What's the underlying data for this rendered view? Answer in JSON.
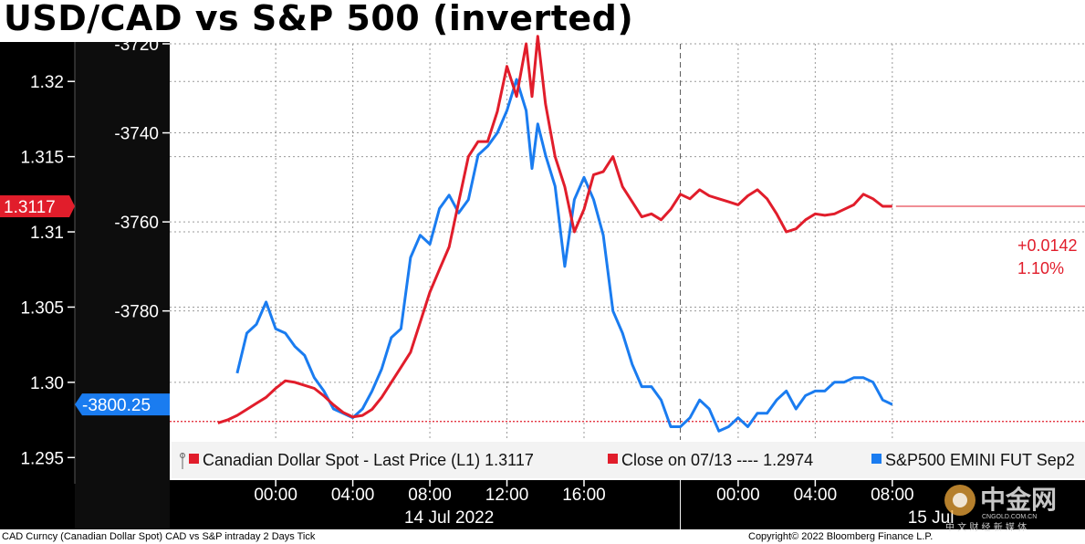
{
  "chart_data": {
    "type": "line",
    "title": "USD/CAD vs S&P 500 (inverted)",
    "left_axis": {
      "ylim": [
        1.2935,
        1.3225
      ],
      "ticks": [
        "1.295",
        "1.30",
        "1.305",
        "1.31",
        "1.315",
        "1.32"
      ],
      "tick_values": [
        1.295,
        1.3,
        1.305,
        1.31,
        1.315,
        1.32
      ]
    },
    "right_axis": {
      "ylim": [
        -3818,
        -3720
      ],
      "ticks": [
        "-3720",
        "-3740",
        "-3760",
        "-3780"
      ],
      "tick_values": [
        -3720,
        -3740,
        -3760,
        -3780
      ]
    },
    "x_range": [
      -5.5,
      42
    ],
    "x_ticks": [
      {
        "x": 0,
        "label": "00:00"
      },
      {
        "x": 4,
        "label": "04:00"
      },
      {
        "x": 8,
        "label": "08:00"
      },
      {
        "x": 12,
        "label": "12:00"
      },
      {
        "x": 16,
        "label": "16:00"
      },
      {
        "x": 24,
        "label": "00:00"
      },
      {
        "x": 28,
        "label": "04:00"
      },
      {
        "x": 32,
        "label": "08:00"
      }
    ],
    "date_labels": [
      {
        "x": 9,
        "label": "14 Jul 2022"
      },
      {
        "x": 34,
        "label": "15 Jul"
      }
    ],
    "separator_x": 21,
    "series": [
      {
        "name": "Canadian Dollar Spot",
        "axis": "left",
        "color": "#e11d2b",
        "last_label": "1.3117",
        "x": [
          -3.0,
          -2.5,
          -2.0,
          -1.5,
          -1.0,
          -0.5,
          0.0,
          0.5,
          1.0,
          1.5,
          2.0,
          2.5,
          3.0,
          3.5,
          4.0,
          4.5,
          5.0,
          5.5,
          6.0,
          6.5,
          7.0,
          7.5,
          8.0,
          8.5,
          9.0,
          9.5,
          10.0,
          10.5,
          11.0,
          11.5,
          12.0,
          12.5,
          13.0,
          13.3,
          13.6,
          14.0,
          14.5,
          15.0,
          15.5,
          16.0,
          16.5,
          17.0,
          17.5,
          18.0,
          18.5,
          19.0,
          19.5,
          20.0,
          20.5,
          21.0,
          21.5,
          22.0,
          22.5,
          23.0,
          23.5,
          24.0,
          24.5,
          25.0,
          25.5,
          26.0,
          26.5,
          27.0,
          27.5,
          28.0,
          28.5,
          29.0,
          29.5,
          30.0,
          30.5,
          31.0,
          31.5,
          32.0
        ],
        "y": [
          1.2973,
          1.2975,
          1.2978,
          1.2982,
          1.2986,
          1.299,
          1.2996,
          1.3001,
          1.3,
          1.2998,
          1.2996,
          1.2991,
          1.2985,
          1.298,
          1.2977,
          1.2978,
          1.2982,
          1.299,
          1.3,
          1.301,
          1.302,
          1.304,
          1.306,
          1.3075,
          1.309,
          1.312,
          1.315,
          1.316,
          1.316,
          1.318,
          1.321,
          1.319,
          1.3225,
          1.319,
          1.323,
          1.3185,
          1.315,
          1.313,
          1.31,
          1.3115,
          1.3138,
          1.314,
          1.315,
          1.313,
          1.312,
          1.311,
          1.3112,
          1.3108,
          1.3115,
          1.3125,
          1.3122,
          1.3128,
          1.3124,
          1.3122,
          1.312,
          1.3118,
          1.3124,
          1.3128,
          1.3122,
          1.3112,
          1.31,
          1.3102,
          1.3108,
          1.3112,
          1.3111,
          1.3112,
          1.3115,
          1.3118,
          1.3125,
          1.3122,
          1.3117,
          1.3117
        ]
      },
      {
        "name": "S&P500 EMINI FUT Sep2",
        "axis": "right",
        "color": "#1a7cf0",
        "last_label": "-3800.25",
        "segments": [
          {
            "x": [
              -2.0,
              -1.5,
              -1.0,
              -0.5,
              0.0,
              0.5,
              1.0,
              1.5,
              2.0,
              2.5,
              3.0,
              3.5,
              4.0,
              4.5,
              5.0,
              5.5,
              6.0,
              6.5,
              7.0,
              7.5,
              8.0,
              8.5,
              9.0,
              9.5,
              10.0,
              10.5,
              11.0,
              11.5,
              12.0,
              12.5,
              13.0,
              13.3,
              13.6,
              14.0,
              14.5,
              15.0,
              15.5,
              16.0,
              16.5,
              17.0,
              17.5,
              18.0,
              18.5,
              19.0,
              19.5,
              20.0,
              20.5,
              21.0,
              21.5,
              22.0,
              22.5,
              23.0,
              23.5,
              24.0,
              24.5,
              25.0,
              25.5,
              26.0,
              26.5,
              27.0,
              27.5,
              28.0,
              28.5,
              29.0,
              29.5,
              30.0,
              30.5,
              31.0,
              31.5,
              32.0
            ],
            "y": [
              -3794,
              -3785,
              -3783,
              -3778,
              -3784,
              -3785,
              -3788,
              -3790,
              -3795,
              -3798,
              -3802,
              -3803,
              -3804,
              -3802,
              -3798,
              -3793,
              -3786,
              -3784,
              -3768,
              -3763,
              -3765,
              -3757,
              -3754,
              -3758,
              -3755,
              -3745,
              -3743,
              -3740,
              -3735,
              -3728,
              -3735,
              -3748,
              -3738,
              -3745,
              -3752,
              -3770,
              -3755,
              -3750,
              -3755,
              -3763,
              -3780,
              -3785,
              -3792,
              -3797,
              -3797,
              -3800,
              -3806,
              -3806,
              -3804,
              -3800,
              -3802,
              -3807,
              -3806,
              -3804,
              -3806,
              -3803,
              -3803,
              -3800,
              -3798,
              -3802,
              -3799,
              -3798,
              -3798,
              -3796,
              -3796,
              -3795,
              -3795,
              -3796,
              -3800,
              -3801
            ]
          }
        ]
      }
    ],
    "close_line": {
      "value": 1.2974,
      "color": "#e11d2b"
    },
    "change_label": {
      "abs": "+0.0142",
      "pct": "1.10%"
    },
    "legend": [
      {
        "label": "Canadian Dollar Spot - Last Price (L1) 1.3117",
        "color": "#e11d2b"
      },
      {
        "label": "Close on 07/13 ---- 1.2974",
        "color": "#e11d2b"
      },
      {
        "label": "S&P500 EMINI FUT Sep2",
        "color": "#1a7cf0"
      }
    ],
    "footer_left": "CAD Curncy (Canadian Dollar Spot) CAD vs S&P intraday 2 Days  Tick",
    "footer_right": "Copyright© 2022 Bloomberg Finance L.P.",
    "watermark": {
      "cn": "中金网",
      "url": "CNGOLD.COM.CN",
      "sub": "中 文 财 经 新 媒 体"
    }
  }
}
